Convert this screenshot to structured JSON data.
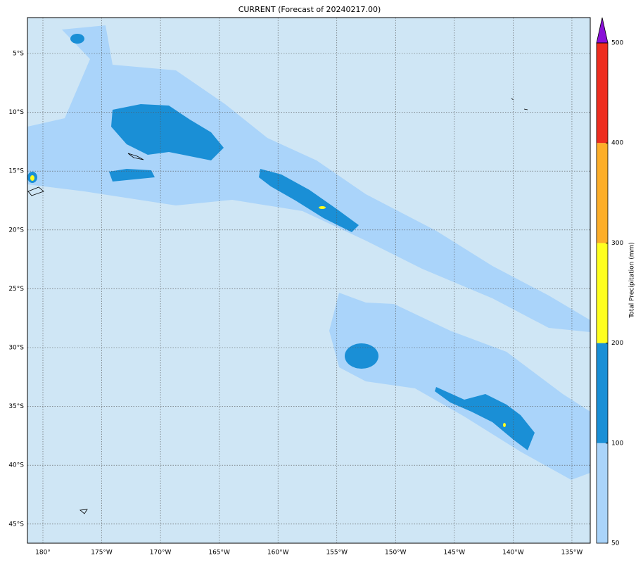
{
  "title": "CURRENT (Forecast of 20240217.00)",
  "map": {
    "lon_ticks": [
      "180°",
      "175°W",
      "170°W",
      "165°W",
      "160°W",
      "155°W",
      "150°W",
      "145°W",
      "140°W",
      "135°W"
    ],
    "lat_ticks": [
      "5°S",
      "10°S",
      "15°S",
      "20°S",
      "25°S",
      "30°S",
      "35°S",
      "40°S",
      "45°S"
    ]
  },
  "colorbar": {
    "label": "Total Precipitation (mm)",
    "levels": [
      50,
      100,
      200,
      300,
      400,
      500
    ],
    "colors": [
      "#aad4fa",
      "#1a8fd6",
      "#ffff1e",
      "#fdae29",
      "#ee2d1f"
    ],
    "extend_color": "#8a10d8"
  }
}
